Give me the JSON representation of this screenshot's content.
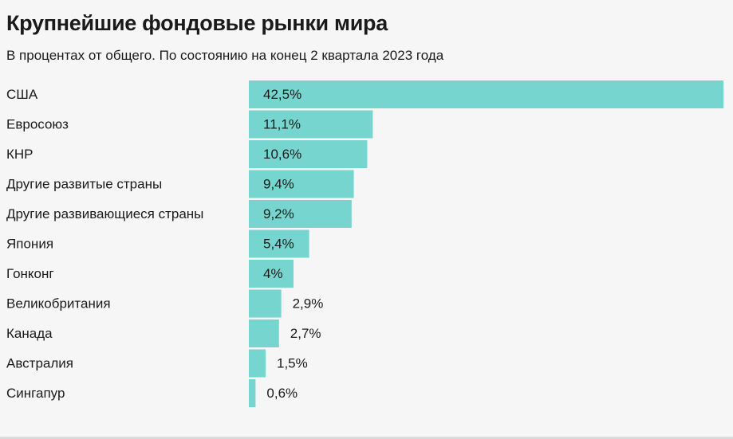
{
  "chart_data": {
    "type": "bar",
    "orientation": "horizontal",
    "title": "Крупнейшие фондовые рынки мира",
    "subtitle": "В процентах от общего. По состоянию на конец 2 квартала 2023 года",
    "categories": [
      "США",
      "Евросоюз",
      "КНР",
      "Другие развитые страны",
      "Другие развивающиеся страны",
      "Япония",
      "Гонконг",
      "Великобритания",
      "Канада",
      "Австралия",
      "Сингапур"
    ],
    "values": [
      42.5,
      11.1,
      10.6,
      9.4,
      9.2,
      5.4,
      4,
      2.9,
      2.7,
      1.5,
      0.6
    ],
    "value_labels": [
      "42,5%",
      "11,1%",
      "10,6%",
      "9,4%",
      "9,2%",
      "5,4%",
      "4%",
      "2,9%",
      "2,7%",
      "1,5%",
      "0,6%"
    ],
    "xlim": [
      0,
      42.5
    ],
    "grid": false,
    "bar_color": "#76d6cf"
  }
}
